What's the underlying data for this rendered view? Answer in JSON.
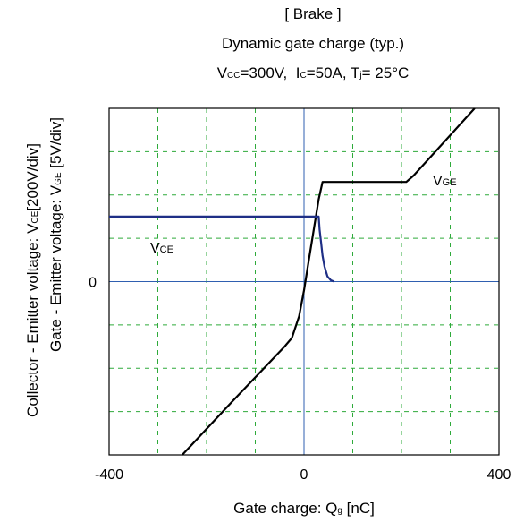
{
  "chart_data": {
    "type": "line",
    "title": "[ Brake ]",
    "subtitle": "Dynamic gate charge  (typ.)",
    "conditions": {
      "vcc_label": "V",
      "vcc_sub": "CC",
      "vcc_value": "=300V,",
      "ic_label": "I",
      "ic_sub": "C",
      "ic_value": "=50A,",
      "tj_label": "T",
      "tj_sub": "j",
      "tj_value": "= 25°C"
    },
    "xlabel": {
      "text": "Gate charge: Q",
      "sub": "g",
      "unit": " [nC]"
    },
    "ylabel_outer": {
      "text": "Collector - Emitter voltage: V",
      "sub": "CE",
      "unit": "[200V/div]"
    },
    "ylabel_inner": {
      "text": "Gate - Emitter voltage:   V",
      "sub": "GE",
      "unit": " [5V/div]"
    },
    "xlim": [
      -400,
      400
    ],
    "ylim_div": [
      -4,
      4
    ],
    "x_ticks": [
      -400,
      0,
      400
    ],
    "x_tick_labels": [
      "-400",
      "0",
      "400"
    ],
    "y_tick_labels": [
      {
        "div": 0,
        "label": "0"
      }
    ],
    "grid": true,
    "series": [
      {
        "name": "VGE",
        "label_main": "V",
        "label_sub": "GE",
        "color": "#000000",
        "points": [
          [
            -250,
            -4.0
          ],
          [
            -150,
            -2.8
          ],
          [
            -40,
            -1.5
          ],
          [
            -25,
            -1.3
          ],
          [
            -10,
            -0.8
          ],
          [
            0,
            -0.2
          ],
          [
            10,
            0.5
          ],
          [
            20,
            1.2
          ],
          [
            30,
            1.9
          ],
          [
            38,
            2.3
          ],
          [
            45,
            2.3
          ],
          [
            100,
            2.3
          ],
          [
            200,
            2.3
          ],
          [
            210,
            2.3
          ],
          [
            225,
            2.45
          ],
          [
            350,
            4.0
          ]
        ]
      },
      {
        "name": "VCE",
        "label_main": "V",
        "label_sub": "CE",
        "color": "#1f2f86",
        "points": [
          [
            -400,
            1.5
          ],
          [
            -200,
            1.5
          ],
          [
            30,
            1.5
          ],
          [
            32,
            1.2
          ],
          [
            35,
            0.9
          ],
          [
            38,
            0.6
          ],
          [
            42,
            0.35
          ],
          [
            48,
            0.12
          ],
          [
            55,
            0.03
          ],
          [
            62,
            0.0
          ]
        ]
      }
    ]
  }
}
